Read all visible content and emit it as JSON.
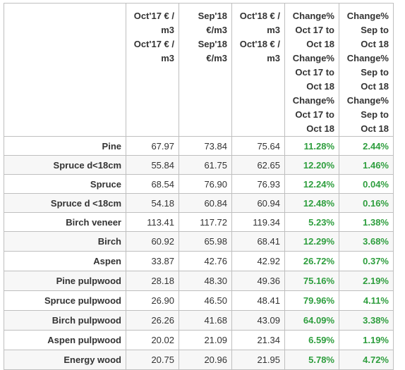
{
  "headers": [
    "",
    "Oct'17 € /\nm3",
    "Sep'18\n€/m3",
    "Oct'18 € /\nm3",
    "Change%\nOct 17 to\nOct 18",
    "Change%\nSep to Oct\n18"
  ],
  "rows": [
    {
      "name": "Pine",
      "oct17": "67.97",
      "sep18": "73.84",
      "oct18": "75.64",
      "chg_year": "11.28%",
      "chg_month": "2.44%"
    },
    {
      "name": "Spruce d<18cm",
      "oct17": "55.84",
      "sep18": "61.75",
      "oct18": "62.65",
      "chg_year": "12.20%",
      "chg_month": "1.46%"
    },
    {
      "name": "Spruce",
      "oct17": "68.54",
      "sep18": "76.90",
      "oct18": "76.93",
      "chg_year": "12.24%",
      "chg_month": "0.04%"
    },
    {
      "name": "Spruce d <18cm",
      "oct17": "54.18",
      "sep18": "60.84",
      "oct18": "60.94",
      "chg_year": "12.48%",
      "chg_month": "0.16%"
    },
    {
      "name": "Birch veneer",
      "oct17": "113.41",
      "sep18": "117.72",
      "oct18": "119.34",
      "chg_year": "5.23%",
      "chg_month": "1.38%"
    },
    {
      "name": "Birch",
      "oct17": "60.92",
      "sep18": "65.98",
      "oct18": "68.41",
      "chg_year": "12.29%",
      "chg_month": "3.68%"
    },
    {
      "name": "Aspen",
      "oct17": "33.87",
      "sep18": "42.76",
      "oct18": "42.92",
      "chg_year": "26.72%",
      "chg_month": "0.37%"
    },
    {
      "name": "Pine pulpwood",
      "oct17": "28.18",
      "sep18": "48.30",
      "oct18": "49.36",
      "chg_year": "75.16%",
      "chg_month": "2.19%"
    },
    {
      "name": "Spruce pulpwood",
      "oct17": "26.90",
      "sep18": "46.50",
      "oct18": "48.41",
      "chg_year": "79.96%",
      "chg_month": "4.11%"
    },
    {
      "name": "Birch pulpwood",
      "oct17": "26.26",
      "sep18": "41.68",
      "oct18": "43.09",
      "chg_year": "64.09%",
      "chg_month": "3.38%"
    },
    {
      "name": "Aspen pulpwood",
      "oct17": "20.02",
      "sep18": "21.09",
      "oct18": "21.34",
      "chg_year": "6.59%",
      "chg_month": "1.19%"
    },
    {
      "name": "Energy wood",
      "oct17": "20.75",
      "sep18": "20.96",
      "oct18": "21.95",
      "chg_year": "5.78%",
      "chg_month": "4.72%"
    }
  ],
  "colors": {
    "change_text": "#2e9e3e",
    "alt_row_bg": "#f7f7f7",
    "border": "#bfbfbf"
  }
}
